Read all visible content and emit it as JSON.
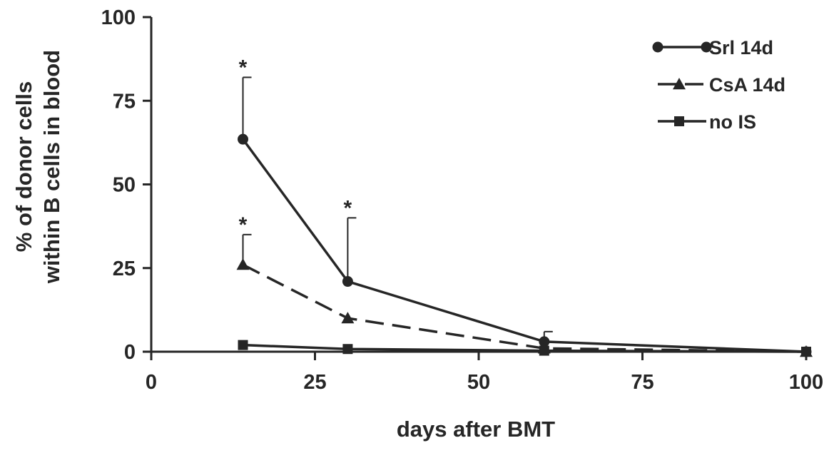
{
  "chart_data": {
    "type": "line",
    "title": "",
    "xlabel": "days after BMT",
    "ylabel_lines": [
      "% of donor cells",
      "within B cells in blood"
    ],
    "xlim": [
      0,
      100
    ],
    "ylim": [
      0,
      100
    ],
    "xticks": [
      0,
      25,
      50,
      75,
      100
    ],
    "yticks": [
      0,
      25,
      50,
      75,
      100
    ],
    "grid": false,
    "legend_position": "top-right",
    "series": [
      {
        "name": "Srl 14d",
        "marker": "circle",
        "line": "solid",
        "x": [
          14,
          30,
          60,
          100
        ],
        "y": [
          63.5,
          21,
          3,
          0
        ],
        "error_upper": [
          82,
          40,
          6,
          null
        ]
      },
      {
        "name": "CsA 14d",
        "marker": "triangle",
        "line": "dashed",
        "x": [
          14,
          30,
          60,
          100
        ],
        "y": [
          26,
          10,
          1,
          0
        ],
        "error_upper": [
          35,
          null,
          null,
          null
        ]
      },
      {
        "name": "no IS",
        "marker": "square",
        "line": "solid",
        "x": [
          14,
          30,
          60,
          100
        ],
        "y": [
          2,
          0.8,
          0.3,
          0
        ],
        "error_upper": [
          null,
          null,
          null,
          null
        ]
      }
    ],
    "annotations": [
      {
        "text": "*",
        "x": 14,
        "y": 82
      },
      {
        "text": "*",
        "x": 30,
        "y": 40
      },
      {
        "text": "*",
        "x": 14,
        "y": 35
      }
    ]
  }
}
